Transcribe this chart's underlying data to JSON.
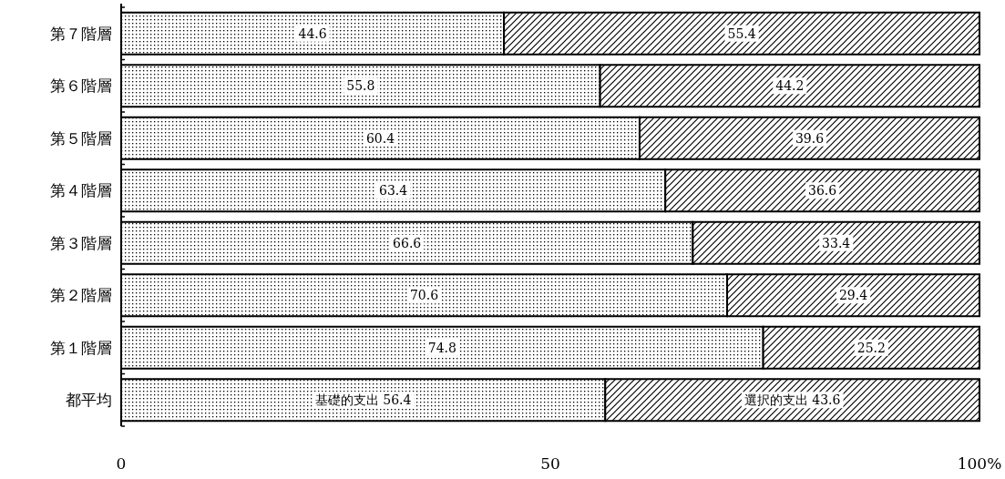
{
  "chart_data": {
    "type": "bar",
    "orientation": "horizontal",
    "stacked": true,
    "categories": [
      "第７階層",
      "第６階層",
      "第５階層",
      "第４階層",
      "第３階層",
      "第２階層",
      "第１階層",
      "都平均"
    ],
    "series": [
      {
        "color": "#000000",
        "values": [
          44.6,
          55.8,
          60.4,
          63.4,
          66.6,
          70.6,
          74.8,
          56.4
        ],
        "value_labels": [
          "44.6",
          "55.8",
          "60.4",
          "63.4",
          "66.6",
          "70.6",
          "74.8",
          "基礎的支出 56.4"
        ]
      },
      {
        "color": "#000000",
        "values": [
          55.4,
          44.2,
          39.6,
          36.6,
          33.4,
          29.4,
          25.2,
          43.6
        ],
        "value_labels": [
          "55.4",
          "44.2",
          "39.6",
          "36.6",
          "33.4",
          "29.4",
          "25.2",
          "選択的支出 43.6"
        ]
      }
    ],
    "xlim": [
      0,
      100
    ],
    "xticks": [
      0,
      50,
      {
        "value": 100,
        "label": "100%"
      }
    ],
    "grid": false
  }
}
